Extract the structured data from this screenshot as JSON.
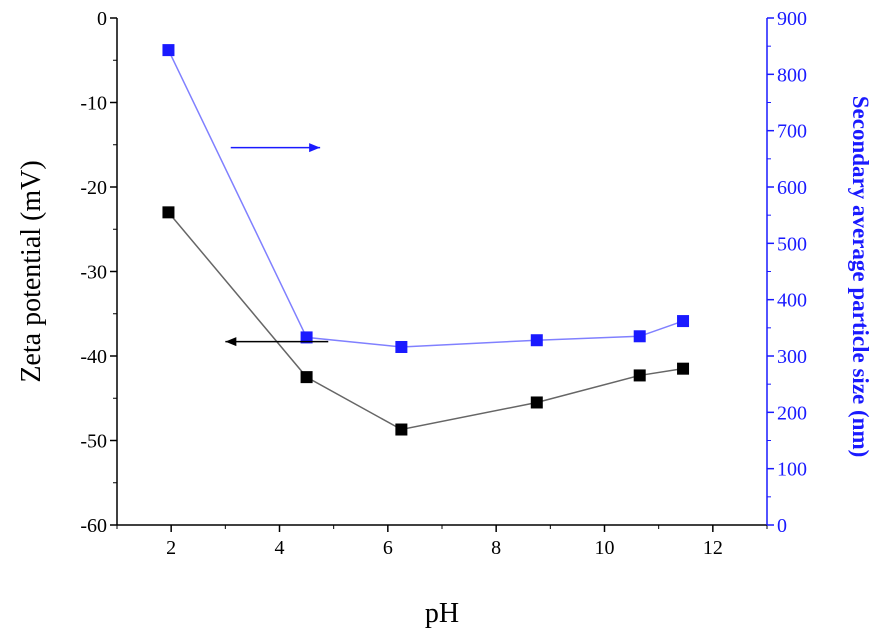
{
  "chart_data": {
    "type": "line",
    "title": "",
    "xlabel": "pH",
    "xlim": [
      1,
      13
    ],
    "xticks": [
      2,
      4,
      6,
      8,
      10,
      12
    ],
    "grid": false,
    "legend": "none",
    "y_left": {
      "label": "Zeta potential (mV)",
      "lim": [
        -60,
        0
      ],
      "ticks": [
        0,
        -10,
        -20,
        -30,
        -40,
        -50,
        -60
      ],
      "color": "#000000"
    },
    "y_right": {
      "label": "Secondary average particle size (nm)",
      "lim": [
        0,
        900
      ],
      "ticks": [
        0,
        100,
        200,
        300,
        400,
        500,
        600,
        700,
        800,
        900
      ],
      "color": "#1a1aff"
    },
    "series": [
      {
        "axis": "left",
        "color": "#000000",
        "line_color": "#666666",
        "marker": "square",
        "x": [
          1.95,
          4.5,
          6.25,
          8.75,
          10.65,
          11.45
        ],
        "y": [
          -23,
          -42.5,
          -48.7,
          -45.5,
          -42.3,
          -41.5
        ]
      },
      {
        "axis": "right",
        "color": "#1a1aff",
        "line_color": "#8080ff",
        "marker": "square",
        "x": [
          1.95,
          4.5,
          6.25,
          8.75,
          10.65,
          11.45
        ],
        "y": [
          843,
          333,
          316,
          328,
          335,
          362
        ]
      }
    ],
    "annotations": [
      {
        "type": "arrow",
        "direction": "right",
        "color": "#1a1aff",
        "x_from": 3.1,
        "x_to": 4.75,
        "axis": "right",
        "y": 670
      },
      {
        "type": "arrow",
        "direction": "left",
        "color": "#000000",
        "x_from": 4.9,
        "x_to": 3.0,
        "axis": "left",
        "y": -38.3
      }
    ]
  }
}
